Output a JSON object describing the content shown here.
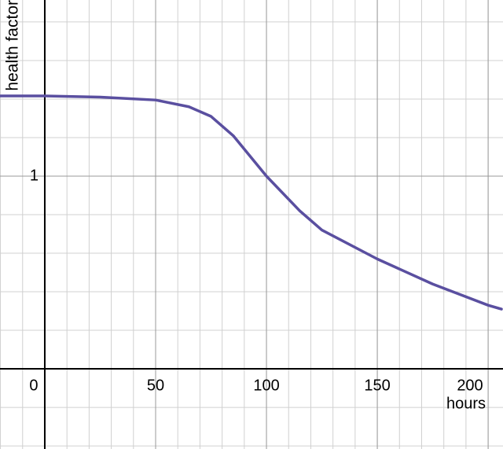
{
  "chart_data": {
    "type": "line",
    "x_label": "hours",
    "y_label": "health factor",
    "x": [
      -20,
      0,
      25,
      50,
      65,
      75,
      85,
      100,
      115,
      125,
      150,
      175,
      200,
      206
    ],
    "series": [
      {
        "color": "#5a4fa0",
        "values": [
          1.416,
          1.416,
          1.41,
          1.395,
          1.36,
          1.31,
          1.21,
          1.0,
          0.82,
          0.72,
          0.57,
          0.44,
          0.33,
          0.31
        ]
      }
    ],
    "xlim": [
      -20.2,
      206.7
    ],
    "ylim": [
      -0.416,
      1.914
    ],
    "xticks": [
      0,
      50,
      100,
      150,
      200
    ],
    "yticks": [
      1
    ],
    "grid": true
  }
}
